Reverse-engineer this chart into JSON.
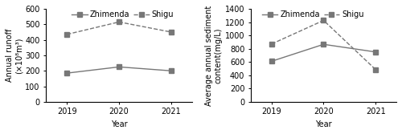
{
  "years": [
    2019,
    2020,
    2021
  ],
  "left": {
    "zhimenda": [
      185,
      225,
      200
    ],
    "shigu": [
      435,
      515,
      450
    ],
    "ylabel_line1": "Annual runoff",
    "ylabel_line2": "(×10⁸m³)",
    "ylim": [
      0,
      600
    ],
    "yticks": [
      0,
      100,
      200,
      300,
      400,
      500,
      600
    ]
  },
  "right": {
    "zhimenda": [
      610,
      865,
      750
    ],
    "shigu": [
      870,
      1225,
      485
    ],
    "ylabel_line1": "Average annual sediment",
    "ylabel_line2": "content(mg/L)",
    "ylim": [
      0,
      1400
    ],
    "yticks": [
      0,
      200,
      400,
      600,
      800,
      1000,
      1200,
      1400
    ]
  },
  "legend_labels": [
    "Zhimenda",
    "Shigu"
  ],
  "xlabel": "Year",
  "line_color": "#777777",
  "zhimenda_linestyle": "-",
  "shigu_linestyle": "--",
  "marker": "s",
  "markersize": 4,
  "linewidth": 1.0,
  "tick_fontsize": 7,
  "label_fontsize": 7,
  "ylabel_fontsize": 7,
  "legend_fontsize": 7
}
